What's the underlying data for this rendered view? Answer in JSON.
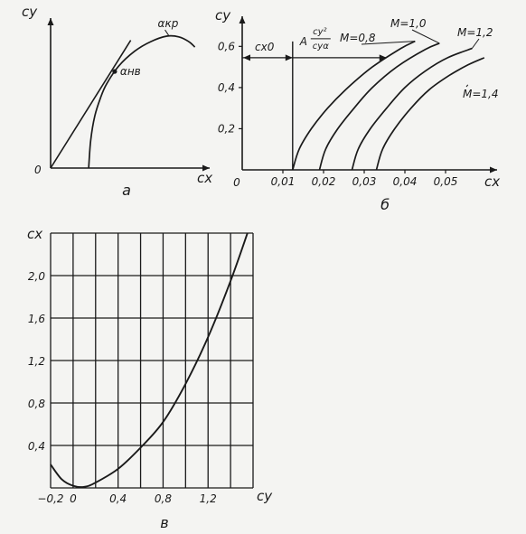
{
  "chart_data": [
    {
      "id": "a",
      "type": "line",
      "caption": "а",
      "xlabel": "cx",
      "ylabel": "cy",
      "origin_label": "0",
      "annotations": {
        "alpha_kr": "αкр",
        "alpha_nv": "αнв"
      },
      "series": [
        {
          "kind": "polar",
          "points": [
            [
              0.095,
              0
            ],
            [
              0.1,
              0.2
            ],
            [
              0.11,
              0.38
            ],
            [
              0.125,
              0.52
            ],
            [
              0.14,
              0.62
            ],
            [
              0.17,
              0.75
            ],
            [
              0.21,
              0.86
            ],
            [
              0.25,
              0.93
            ],
            [
              0.29,
              0.97
            ],
            [
              0.32,
              0.965
            ],
            [
              0.345,
              0.93
            ],
            [
              0.36,
              0.89
            ]
          ]
        },
        {
          "kind": "tangent",
          "points": [
            [
              0,
              0
            ],
            [
              0.2,
              0.94
            ]
          ]
        }
      ],
      "marked_point": [
        0.16,
        0.71
      ],
      "xlim": [
        0,
        0.37
      ],
      "ylim": [
        0,
        1.05
      ]
    },
    {
      "id": "b",
      "type": "line",
      "caption": "б",
      "xlabel": "cx",
      "ylabel": "cy",
      "origin_label": "0",
      "x_ticks": [
        "0,01",
        "0,02",
        "0,03",
        "0,04",
        "0,05"
      ],
      "x_tick_values": [
        0.01,
        0.02,
        0.03,
        0.04,
        0.05
      ],
      "y_ticks": [
        "0,2",
        "0,4",
        "0,6"
      ],
      "y_tick_values": [
        0.2,
        0.4,
        0.6
      ],
      "xlim": [
        0,
        0.06
      ],
      "ylim": [
        0,
        0.72
      ],
      "annotations": {
        "cx0_label": "cx0",
        "formula_A": "A",
        "formula_num": "cy²",
        "formula_den": "cyα"
      },
      "cx0_level": 0.545,
      "cx0_value": 0.0124,
      "series": [
        {
          "name": "M=0,8",
          "points": [
            [
              0.0124,
              0
            ],
            [
              0.014,
              0.1
            ],
            [
              0.017,
              0.2
            ],
            [
              0.021,
              0.3
            ],
            [
              0.026,
              0.4
            ],
            [
              0.032,
              0.5
            ],
            [
              0.039,
              0.59
            ],
            [
              0.0425,
              0.625
            ]
          ]
        },
        {
          "name": "M=1,0",
          "points": [
            [
              0.019,
              0
            ],
            [
              0.0205,
              0.1
            ],
            [
              0.0235,
              0.2
            ],
            [
              0.0275,
              0.3
            ],
            [
              0.032,
              0.4
            ],
            [
              0.038,
              0.5
            ],
            [
              0.045,
              0.585
            ],
            [
              0.0485,
              0.615
            ]
          ]
        },
        {
          "name": "M=1,2",
          "points": [
            [
              0.027,
              0
            ],
            [
              0.0285,
              0.1
            ],
            [
              0.0315,
              0.2
            ],
            [
              0.0355,
              0.3
            ],
            [
              0.04,
              0.4
            ],
            [
              0.045,
              0.48
            ],
            [
              0.0505,
              0.545
            ],
            [
              0.0565,
              0.59
            ]
          ]
        },
        {
          "name": "M=1,4",
          "points": [
            [
              0.033,
              0
            ],
            [
              0.0345,
              0.1
            ],
            [
              0.0375,
              0.2
            ],
            [
              0.0415,
              0.3
            ],
            [
              0.046,
              0.39
            ],
            [
              0.051,
              0.46
            ],
            [
              0.0555,
              0.51
            ],
            [
              0.0595,
              0.545
            ]
          ]
        }
      ]
    },
    {
      "id": "v",
      "type": "line",
      "caption": "в",
      "xlabel": "cy",
      "ylabel": "cx",
      "x_ticks": [
        "−0,2",
        "0",
        "0,4",
        "0,8",
        "1,2"
      ],
      "x_tick_values": [
        -0.2,
        0,
        0.4,
        0.8,
        1.2
      ],
      "y_ticks": [
        "0,4",
        "0,8",
        "1,2",
        "1,6",
        "2,0"
      ],
      "y_tick_values": [
        0.4,
        0.8,
        1.2,
        1.6,
        2.0
      ],
      "xlim": [
        -0.2,
        1.6
      ],
      "ylim": [
        0,
        2.4
      ],
      "grid": true,
      "series": [
        {
          "points": [
            [
              -0.2,
              0.22
            ],
            [
              -0.1,
              0.08
            ],
            [
              0,
              0.02
            ],
            [
              0.1,
              0.01
            ],
            [
              0.2,
              0.05
            ],
            [
              0.4,
              0.18
            ],
            [
              0.6,
              0.38
            ],
            [
              0.8,
              0.62
            ],
            [
              1.0,
              0.98
            ],
            [
              1.2,
              1.42
            ],
            [
              1.4,
              1.95
            ],
            [
              1.55,
              2.4
            ]
          ]
        }
      ]
    }
  ]
}
